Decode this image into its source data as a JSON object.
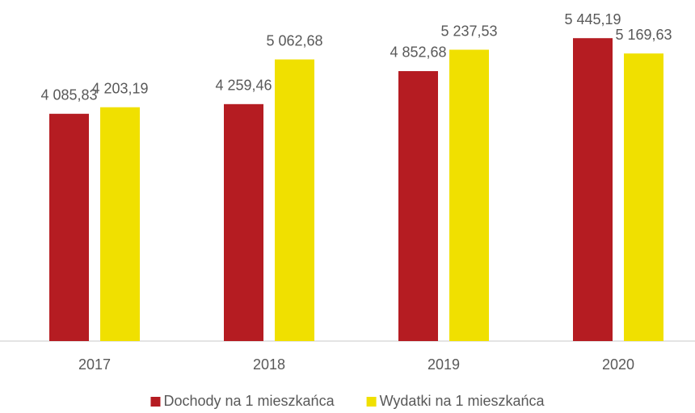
{
  "chart_data": {
    "type": "bar",
    "categories": [
      "2017",
      "2018",
      "2019",
      "2020"
    ],
    "series": [
      {
        "name": "Dochody na 1 mieszkańca",
        "color": "#b51c22",
        "values": [
          4085.83,
          4259.46,
          4852.68,
          5445.19
        ],
        "value_labels": [
          "4 085,83",
          "4 259,46",
          "4 852,68",
          "5 445,19"
        ]
      },
      {
        "name": "Wydatki na 1 mieszkańca",
        "color": "#f0e000",
        "values": [
          4203.19,
          5062.68,
          5237.53,
          5169.63
        ],
        "value_labels": [
          "4 203,19",
          "5 062,68",
          "5 237,53",
          "5 169,63"
        ]
      }
    ],
    "ylim": [
      0,
      5550
    ],
    "legend": "bottom"
  }
}
